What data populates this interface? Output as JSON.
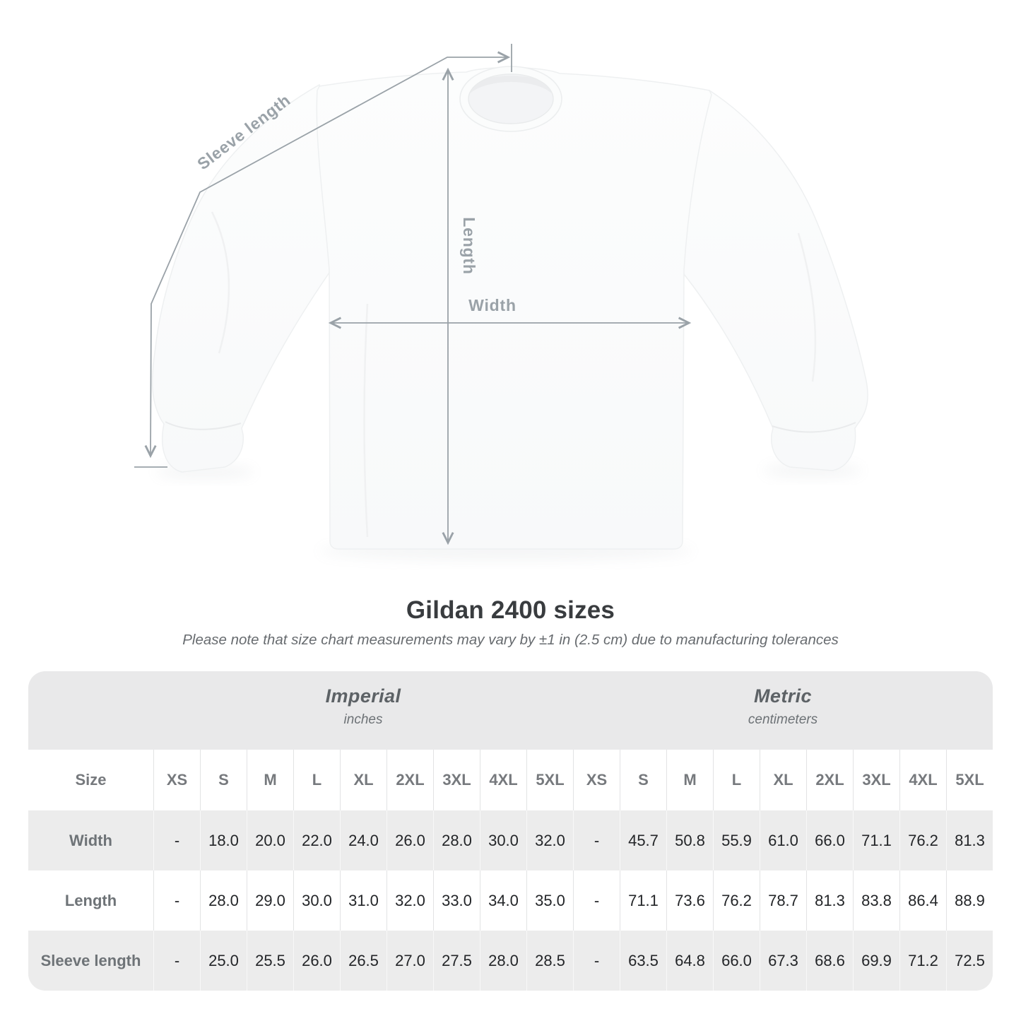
{
  "diagram": {
    "sleeve_label": "Sleeve length",
    "length_label": "Length",
    "width_label": "Width",
    "line_color": "#9aa2a8",
    "label_color": "#9aa2a8"
  },
  "heading": {
    "title": "Gildan 2400 sizes",
    "note": "Please note that size chart measurements may vary by ±1 in (2.5 cm) due to manufacturing tolerances"
  },
  "table": {
    "size_col_label": "Size",
    "unit_groups": [
      {
        "name": "Imperial",
        "unit": "inches"
      },
      {
        "name": "Metric",
        "unit": "centimeters"
      }
    ],
    "sizes": [
      "XS",
      "S",
      "M",
      "L",
      "XL",
      "2XL",
      "3XL",
      "4XL",
      "5XL"
    ],
    "rows": [
      {
        "label": "Width",
        "imperial": [
          "-",
          "18.0",
          "20.0",
          "22.0",
          "24.0",
          "26.0",
          "28.0",
          "30.0",
          "32.0"
        ],
        "metric": [
          "-",
          "45.7",
          "50.8",
          "55.9",
          "61.0",
          "66.0",
          "71.1",
          "76.2",
          "81.3"
        ]
      },
      {
        "label": "Length",
        "imperial": [
          "-",
          "28.0",
          "29.0",
          "30.0",
          "31.0",
          "32.0",
          "33.0",
          "34.0",
          "35.0"
        ],
        "metric": [
          "-",
          "71.1",
          "73.6",
          "76.2",
          "78.7",
          "81.3",
          "83.8",
          "86.4",
          "88.9"
        ]
      },
      {
        "label": "Sleeve length",
        "imperial": [
          "-",
          "25.0",
          "25.5",
          "26.0",
          "26.5",
          "27.0",
          "27.5",
          "28.0",
          "28.5"
        ],
        "metric": [
          "-",
          "63.5",
          "64.8",
          "66.0",
          "67.3",
          "68.6",
          "69.9",
          "71.2",
          "72.5"
        ]
      }
    ]
  },
  "colors": {
    "table_band": "#e9e9ea",
    "table_row_alt": "#ececec",
    "title_text": "#393c3f",
    "value_text": "#232528",
    "muted_text": "#6e7377"
  }
}
